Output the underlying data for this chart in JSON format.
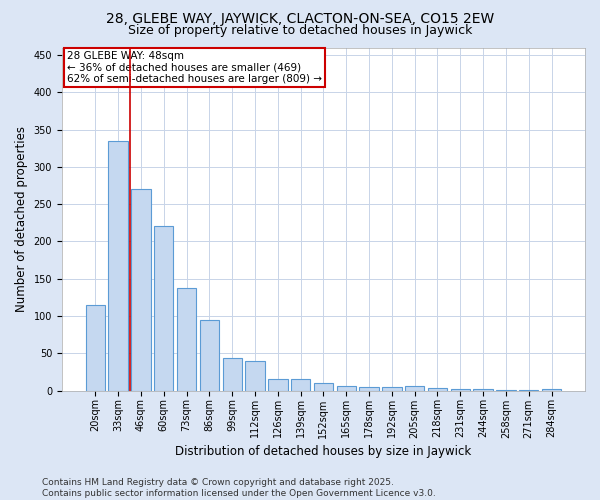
{
  "title": "28, GLEBE WAY, JAYWICK, CLACTON-ON-SEA, CO15 2EW",
  "subtitle": "Size of property relative to detached houses in Jaywick",
  "xlabel": "Distribution of detached houses by size in Jaywick",
  "ylabel": "Number of detached properties",
  "categories": [
    "20sqm",
    "33sqm",
    "46sqm",
    "60sqm",
    "73sqm",
    "86sqm",
    "99sqm",
    "112sqm",
    "126sqm",
    "139sqm",
    "152sqm",
    "165sqm",
    "178sqm",
    "192sqm",
    "205sqm",
    "218sqm",
    "231sqm",
    "244sqm",
    "258sqm",
    "271sqm",
    "284sqm"
  ],
  "values": [
    115,
    335,
    270,
    220,
    138,
    95,
    44,
    40,
    16,
    16,
    10,
    6,
    5,
    5,
    6,
    3,
    2,
    2,
    1,
    1,
    2
  ],
  "bar_color": "#c5d8f0",
  "bar_edge_color": "#5b9bd5",
  "vline_x": 1.5,
  "marker_label": "28 GLEBE WAY: 48sqm",
  "annotation_line1": "← 36% of detached houses are smaller (469)",
  "annotation_line2": "62% of semi-detached houses are larger (809) →",
  "annotation_box_color": "#ffffff",
  "annotation_box_edge": "#cc0000",
  "vline_color": "#cc0000",
  "ylim": [
    0,
    460
  ],
  "yticks": [
    0,
    50,
    100,
    150,
    200,
    250,
    300,
    350,
    400,
    450
  ],
  "plot_bg_color": "#ffffff",
  "fig_bg_color": "#dce6f5",
  "footer_line1": "Contains HM Land Registry data © Crown copyright and database right 2025.",
  "footer_line2": "Contains public sector information licensed under the Open Government Licence v3.0.",
  "title_fontsize": 10,
  "subtitle_fontsize": 9,
  "axis_label_fontsize": 8.5,
  "tick_fontsize": 7,
  "footer_fontsize": 6.5,
  "annotation_fontsize": 7.5
}
